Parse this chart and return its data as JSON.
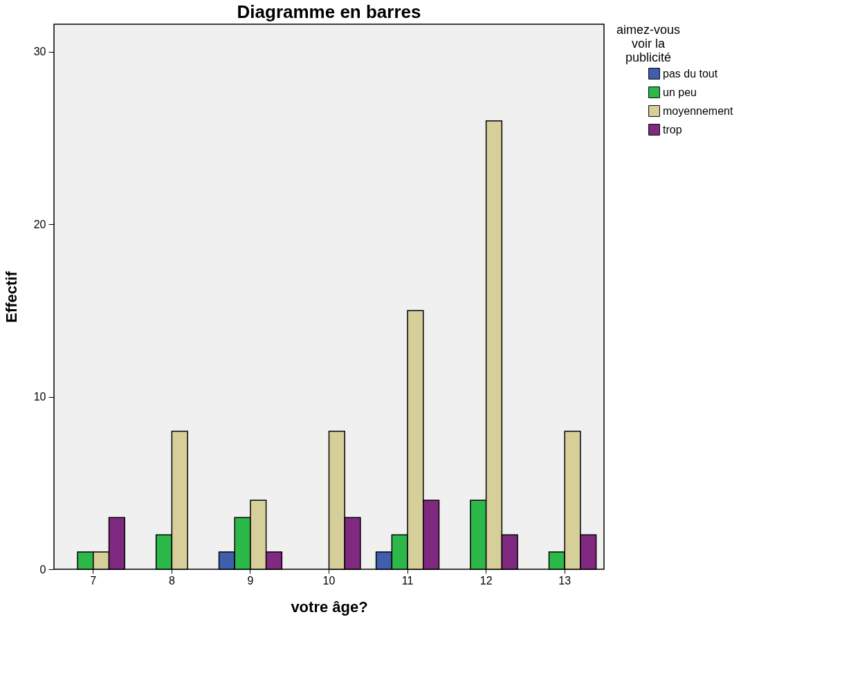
{
  "chart_data": {
    "type": "bar",
    "title": "Diagramme en barres",
    "xlabel": "votre âge?",
    "ylabel": "Effectif",
    "legend_title": "aimez-vous\nvoir la\npublicité",
    "categories": [
      "7",
      "8",
      "9",
      "10",
      "11",
      "12",
      "13"
    ],
    "series": [
      {
        "name": "pas du tout",
        "color": "#3f5fad",
        "values": [
          null,
          null,
          1,
          null,
          1,
          null,
          null
        ]
      },
      {
        "name": "un peu",
        "color": "#2db84a",
        "values": [
          1,
          2,
          3,
          null,
          2,
          4,
          1
        ]
      },
      {
        "name": "moyennement",
        "color": "#d6cf9a",
        "values": [
          1,
          8,
          4,
          8,
          15,
          26,
          8
        ]
      },
      {
        "name": "trop",
        "color": "#7f2a80",
        "values": [
          3,
          null,
          1,
          3,
          4,
          2,
          2
        ]
      }
    ],
    "ylim": [
      0,
      31.6
    ],
    "yticks": [
      0,
      10,
      20,
      30
    ],
    "grid": false,
    "legend": "top right"
  }
}
